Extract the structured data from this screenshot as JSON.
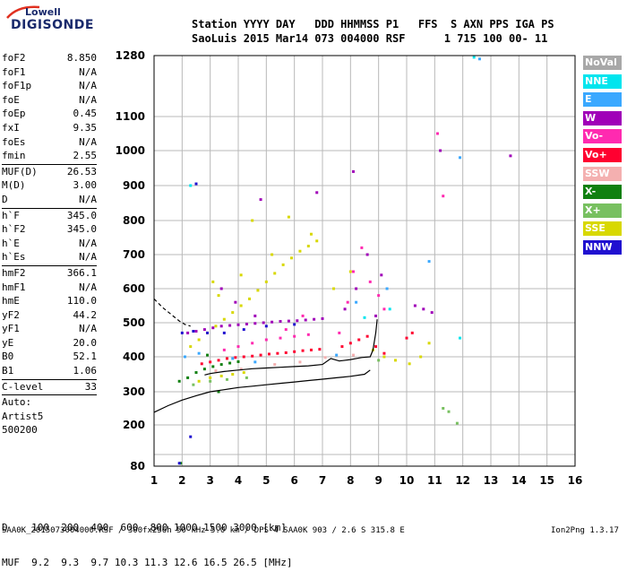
{
  "logo": {
    "line1": "Lowell",
    "line2": "DIGISONDE"
  },
  "header": {
    "line1": "Station YYYY DAY   DDD HHMMSS P1   FFS  S AXN PPS IGA PS",
    "line2": "SaoLuis 2015 Mar14 073 004000 RSF      1 715 100 00- 11"
  },
  "params": {
    "group1": [
      {
        "label": "foF2",
        "value": "8.850"
      },
      {
        "label": "foF1",
        "value": "N/A"
      },
      {
        "label": "foF1p",
        "value": "N/A"
      },
      {
        "label": "foE",
        "value": "N/A"
      },
      {
        "label": "foEp",
        "value": "0.45"
      },
      {
        "label": "fxI",
        "value": "9.35"
      },
      {
        "label": "foEs",
        "value": "N/A"
      },
      {
        "label": "fmin",
        "value": "2.55"
      }
    ],
    "group2": [
      {
        "label": "MUF(D)",
        "value": "26.53"
      },
      {
        "label": "M(D)",
        "value": "3.00"
      },
      {
        "label": "D",
        "value": "N/A"
      }
    ],
    "group3": [
      {
        "label": "h`F",
        "value": "345.0"
      },
      {
        "label": "h`F2",
        "value": "345.0"
      },
      {
        "label": "h`E",
        "value": "N/A"
      },
      {
        "label": "h`Es",
        "value": "N/A"
      }
    ],
    "group4": [
      {
        "label": "hmF2",
        "value": "366.1"
      },
      {
        "label": "hmF1",
        "value": "N/A"
      },
      {
        "label": "hmE",
        "value": "110.0"
      },
      {
        "label": "yF2",
        "value": "44.2"
      },
      {
        "label": "yF1",
        "value": "N/A"
      },
      {
        "label": "yE",
        "value": "20.0"
      },
      {
        "label": "B0",
        "value": "52.1"
      },
      {
        "label": "B1",
        "value": "1.06"
      }
    ],
    "group5": [
      {
        "label": "C-level",
        "value": "33"
      }
    ],
    "auto_lines": [
      "Auto:",
      "Artist5",
      "500200"
    ]
  },
  "legend": [
    {
      "label": "NoVal",
      "color": "#a8a8a8"
    },
    {
      "label": "NNE",
      "color": "#00e5ee"
    },
    {
      "label": "E",
      "color": "#3aa8ff"
    },
    {
      "label": "W",
      "color": "#a000b8"
    },
    {
      "label": "Vo-",
      "color": "#ff2ab0"
    },
    {
      "label": "Vo+",
      "color": "#ff0030"
    },
    {
      "label": "SSW",
      "color": "#f4b0b0"
    },
    {
      "label": "X-",
      "color": "#108010"
    },
    {
      "label": "X+",
      "color": "#78c060"
    },
    {
      "label": "SSE",
      "color": "#d8d800"
    },
    {
      "label": "NNW",
      "color": "#2010d0"
    }
  ],
  "freq_table": {
    "line1": "D    100  200  400  600  800 1000 1500 3000 [km]",
    "line2": "MUF  9.2  9.3  9.7 10.3 11.3 12.6 16.5 26.5 [MHz]"
  },
  "footer": {
    "text": "SAA0K_2015073004000.RSF / 300fx256h 50 kHz 5.0 km / DPS-4 SAA0K 903 / 2.6 S 315.8 E",
    "version": "Ion2Png 1.3.17"
  },
  "chart_data": {
    "type": "scatter",
    "title": "",
    "xlabel": "",
    "ylabel": "",
    "xlim": [
      1,
      16
    ],
    "ylim": [
      80,
      1280
    ],
    "y_scale": "nonlinear",
    "y_ticks": [
      80,
      100,
      200,
      300,
      400,
      500,
      600,
      700,
      800,
      900,
      1000,
      1100,
      1280
    ],
    "y_tick_labels": [
      "80",
      "",
      "200",
      "300",
      "400",
      "500",
      "600",
      "700",
      "800",
      "900",
      "1000",
      "1100",
      "1280"
    ],
    "x_ticks": [
      1,
      2,
      3,
      4,
      5,
      6,
      7,
      8,
      9,
      10,
      11,
      12,
      13,
      14,
      15,
      16
    ],
    "grid": true,
    "series": [
      {
        "color": "#d8d800",
        "points": [
          [
            2.3,
            430
          ],
          [
            2.6,
            450
          ],
          [
            2.9,
            470
          ],
          [
            3.2,
            490
          ],
          [
            3.5,
            510
          ],
          [
            3.8,
            530
          ],
          [
            4.1,
            550
          ],
          [
            4.4,
            570
          ],
          [
            4.7,
            595
          ],
          [
            5.0,
            620
          ],
          [
            5.3,
            645
          ],
          [
            5.6,
            670
          ],
          [
            5.9,
            690
          ],
          [
            6.2,
            710
          ],
          [
            6.5,
            725
          ],
          [
            6.8,
            740
          ],
          [
            2.6,
            330
          ],
          [
            3.0,
            340
          ],
          [
            3.4,
            345
          ],
          [
            3.8,
            350
          ],
          [
            4.2,
            355
          ],
          [
            3.1,
            620
          ],
          [
            3.3,
            580
          ],
          [
            4.1,
            640
          ],
          [
            5.2,
            700
          ],
          [
            6.6,
            760
          ],
          [
            8.8,
            420
          ],
          [
            9.2,
            400
          ],
          [
            9.6,
            390
          ],
          [
            10.1,
            380
          ],
          [
            10.5,
            400
          ],
          [
            10.8,
            440
          ],
          [
            7.4,
            600
          ],
          [
            8.0,
            650
          ],
          [
            4.5,
            800
          ],
          [
            5.8,
            810
          ]
        ]
      },
      {
        "color": "#a000b8",
        "points": [
          [
            2.2,
            470
          ],
          [
            2.5,
            475
          ],
          [
            2.8,
            480
          ],
          [
            3.1,
            485
          ],
          [
            3.4,
            490
          ],
          [
            3.7,
            492
          ],
          [
            4.0,
            494
          ],
          [
            4.3,
            496
          ],
          [
            4.6,
            498
          ],
          [
            4.9,
            500
          ],
          [
            5.2,
            502
          ],
          [
            5.5,
            504
          ],
          [
            5.8,
            505
          ],
          [
            6.1,
            506
          ],
          [
            6.4,
            508
          ],
          [
            6.7,
            510
          ],
          [
            7.0,
            512
          ],
          [
            3.4,
            600
          ],
          [
            3.9,
            560
          ],
          [
            4.6,
            520
          ],
          [
            7.8,
            540
          ],
          [
            8.2,
            600
          ],
          [
            8.6,
            700
          ],
          [
            8.9,
            520
          ],
          [
            9.1,
            640
          ],
          [
            10.3,
            550
          ],
          [
            10.6,
            540
          ],
          [
            10.9,
            530
          ],
          [
            11.2,
            1000
          ],
          [
            13.7,
            985
          ],
          [
            4.8,
            860
          ],
          [
            6.8,
            880
          ],
          [
            8.1,
            940
          ]
        ]
      },
      {
        "color": "#ff2ab0",
        "points": [
          [
            3.5,
            420
          ],
          [
            4.0,
            430
          ],
          [
            4.5,
            440
          ],
          [
            5.0,
            450
          ],
          [
            5.5,
            455
          ],
          [
            6.0,
            460
          ],
          [
            6.5,
            465
          ],
          [
            7.6,
            470
          ],
          [
            7.9,
            560
          ],
          [
            8.1,
            650
          ],
          [
            8.4,
            720
          ],
          [
            8.7,
            620
          ],
          [
            9.0,
            580
          ],
          [
            9.2,
            540
          ],
          [
            6.3,
            520
          ],
          [
            5.7,
            480
          ],
          [
            11.1,
            1050
          ],
          [
            11.3,
            870
          ]
        ]
      },
      {
        "color": "#ff0030",
        "points": [
          [
            2.7,
            380
          ],
          [
            3.0,
            385
          ],
          [
            3.3,
            390
          ],
          [
            3.6,
            395
          ],
          [
            3.9,
            398
          ],
          [
            4.2,
            400
          ],
          [
            4.5,
            402
          ],
          [
            4.8,
            405
          ],
          [
            5.1,
            408
          ],
          [
            5.4,
            410
          ],
          [
            5.7,
            412
          ],
          [
            6.0,
            415
          ],
          [
            6.3,
            418
          ],
          [
            6.6,
            420
          ],
          [
            6.9,
            422
          ],
          [
            7.7,
            430
          ],
          [
            8.0,
            440
          ],
          [
            8.3,
            450
          ],
          [
            8.6,
            460
          ],
          [
            8.9,
            430
          ],
          [
            9.2,
            410
          ],
          [
            10.0,
            455
          ],
          [
            10.2,
            470
          ]
        ]
      },
      {
        "color": "#108010",
        "points": [
          [
            1.9,
            330
          ],
          [
            2.2,
            340
          ],
          [
            2.5,
            355
          ],
          [
            2.8,
            365
          ],
          [
            3.1,
            372
          ],
          [
            3.4,
            378
          ],
          [
            3.7,
            382
          ],
          [
            4.0,
            386
          ],
          [
            2.9,
            405
          ],
          [
            3.3,
            300
          ],
          [
            1.95,
            85
          ]
        ]
      },
      {
        "color": "#2010d0",
        "points": [
          [
            2.0,
            470
          ],
          [
            2.4,
            475
          ],
          [
            2.9,
            470
          ],
          [
            3.5,
            470
          ],
          [
            4.2,
            480
          ],
          [
            5.0,
            490
          ],
          [
            6.0,
            495
          ],
          [
            2.5,
            905
          ],
          [
            1.9,
            85
          ],
          [
            2.3,
            160
          ]
        ]
      },
      {
        "color": "#3aa8ff",
        "points": [
          [
            2.1,
            400
          ],
          [
            2.6,
            410
          ],
          [
            3.8,
            395
          ],
          [
            4.6,
            385
          ],
          [
            7.5,
            405
          ],
          [
            8.2,
            560
          ],
          [
            9.3,
            600
          ],
          [
            10.8,
            680
          ],
          [
            12.6,
            1270
          ],
          [
            11.9,
            980
          ]
        ]
      },
      {
        "color": "#00e5ee",
        "points": [
          [
            2.3,
            900
          ],
          [
            8.5,
            515
          ],
          [
            9.4,
            540
          ],
          [
            11.9,
            455
          ],
          [
            12.4,
            1275
          ]
        ]
      },
      {
        "color": "#78c060",
        "points": [
          [
            2.4,
            320
          ],
          [
            3.0,
            330
          ],
          [
            3.6,
            335
          ],
          [
            4.3,
            340
          ],
          [
            9.0,
            390
          ],
          [
            11.3,
            250
          ],
          [
            11.5,
            240
          ],
          [
            11.8,
            205
          ]
        ]
      },
      {
        "color": "#f4b0b0",
        "points": [
          [
            3.2,
            360
          ],
          [
            4.1,
            365
          ],
          [
            5.3,
            378
          ],
          [
            6.2,
            385
          ],
          [
            7.1,
            398
          ],
          [
            8.1,
            405
          ]
        ]
      }
    ],
    "lines": [
      {
        "name": "virtual-height-trace",
        "style": "solid",
        "points": [
          [
            1.0,
            238
          ],
          [
            1.5,
            258
          ],
          [
            2.0,
            275
          ],
          [
            2.5,
            288
          ],
          [
            3.0,
            300
          ],
          [
            3.5,
            306
          ],
          [
            4.0,
            312
          ],
          [
            4.5,
            316
          ],
          [
            5.0,
            320
          ],
          [
            5.5,
            324
          ],
          [
            6.0,
            328
          ],
          [
            6.5,
            332
          ],
          [
            7.0,
            336
          ],
          [
            7.5,
            340
          ],
          [
            8.0,
            344
          ],
          [
            8.5,
            350
          ],
          [
            8.7,
            362
          ]
        ]
      },
      {
        "name": "profile-trace",
        "style": "solid",
        "points": [
          [
            2.8,
            348
          ],
          [
            3.0,
            352
          ],
          [
            3.5,
            358
          ],
          [
            4.0,
            362
          ],
          [
            4.5,
            366
          ],
          [
            5.0,
            368
          ],
          [
            5.5,
            370
          ],
          [
            6.0,
            372
          ],
          [
            6.5,
            374
          ],
          [
            7.0,
            378
          ],
          [
            7.3,
            395
          ],
          [
            7.6,
            388
          ],
          [
            8.0,
            392
          ],
          [
            8.4,
            398
          ],
          [
            8.7,
            400
          ],
          [
            8.8,
            420
          ],
          [
            8.9,
            470
          ],
          [
            8.95,
            510
          ]
        ]
      },
      {
        "name": "extrapolation-trace",
        "style": "dashed",
        "points": [
          [
            1.0,
            570
          ],
          [
            1.3,
            545
          ],
          [
            1.6,
            525
          ],
          [
            1.9,
            505
          ],
          [
            2.1,
            495
          ],
          [
            2.3,
            490
          ]
        ]
      }
    ]
  }
}
